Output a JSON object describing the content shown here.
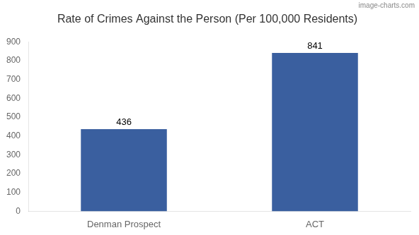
{
  "chart_data": {
    "type": "bar",
    "title": "Rate of Crimes Against the Person (Per 100,000 Residents)",
    "categories": [
      "Denman Prospect",
      "ACT"
    ],
    "values": [
      436,
      841
    ],
    "color": "#3a5f9f",
    "ylim": [
      0,
      900
    ],
    "yticks": [
      0,
      100,
      200,
      300,
      400,
      500,
      600,
      700,
      800,
      900
    ],
    "grid": false,
    "data_labels": true,
    "annotations": [
      "image-charts.com"
    ]
  }
}
